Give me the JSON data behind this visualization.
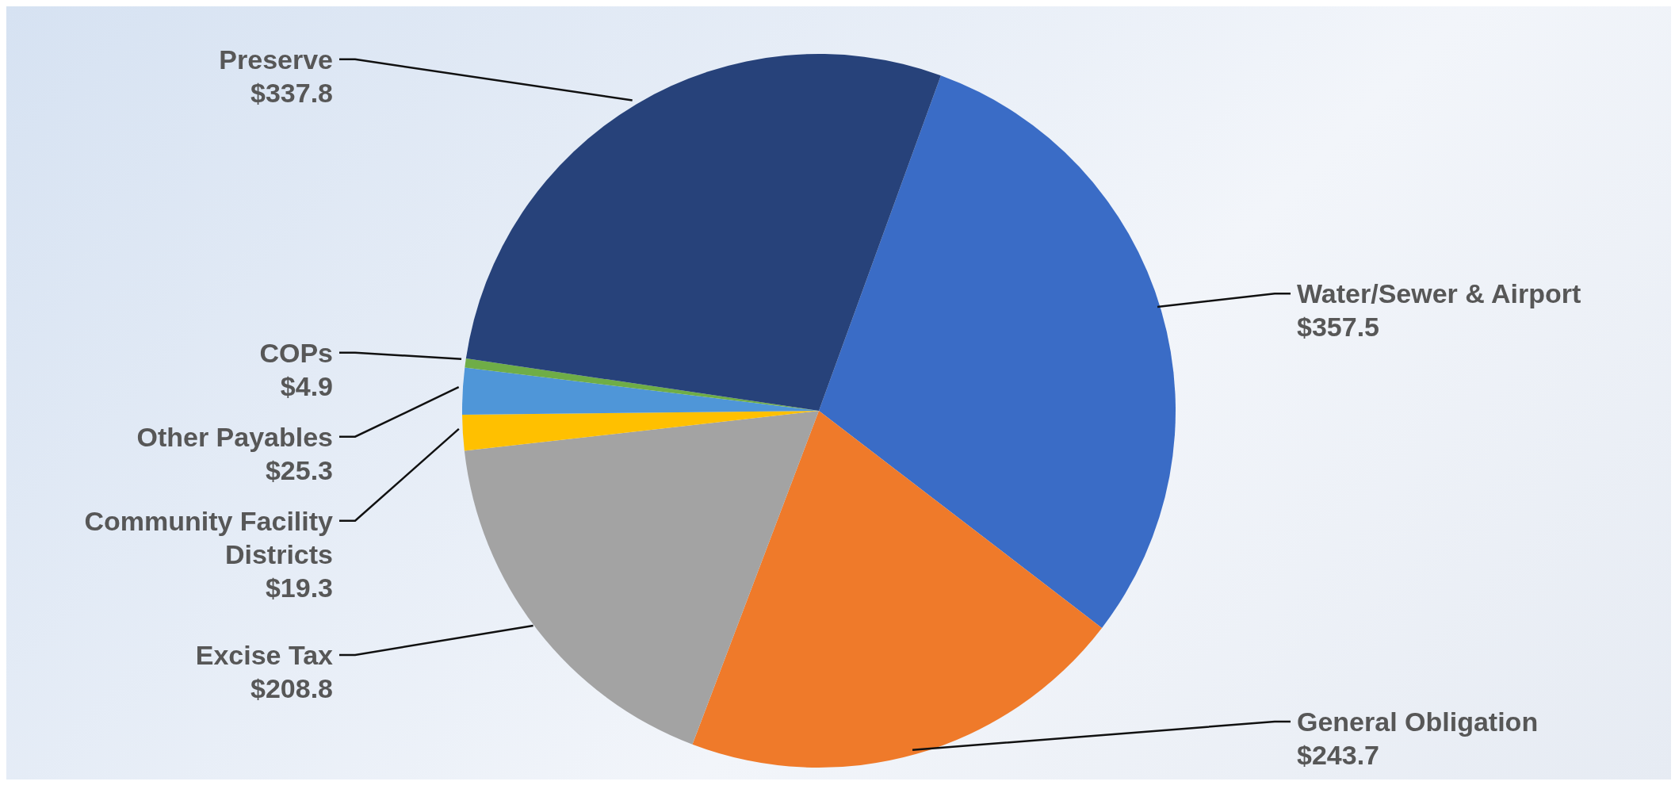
{
  "chart_data": {
    "type": "pie",
    "categories": [
      "Water/Sewer & Airport",
      "General Obligation",
      "Excise Tax",
      "Community Facility Districts",
      "Other Payables",
      "COPs",
      "Preserve"
    ],
    "values": [
      357.5,
      243.7,
      208.8,
      19.3,
      25.3,
      4.9,
      337.8
    ],
    "value_labels": [
      "$357.5",
      "$243.7",
      "$208.8",
      "$19.3",
      "$25.3",
      "$4.9",
      "$337.8"
    ],
    "colors": [
      "#3a6cc6",
      "#ef7a2a",
      "#a3a3a3",
      "#ffc000",
      "#4f96d8",
      "#6fad47",
      "#27427a"
    ]
  }
}
